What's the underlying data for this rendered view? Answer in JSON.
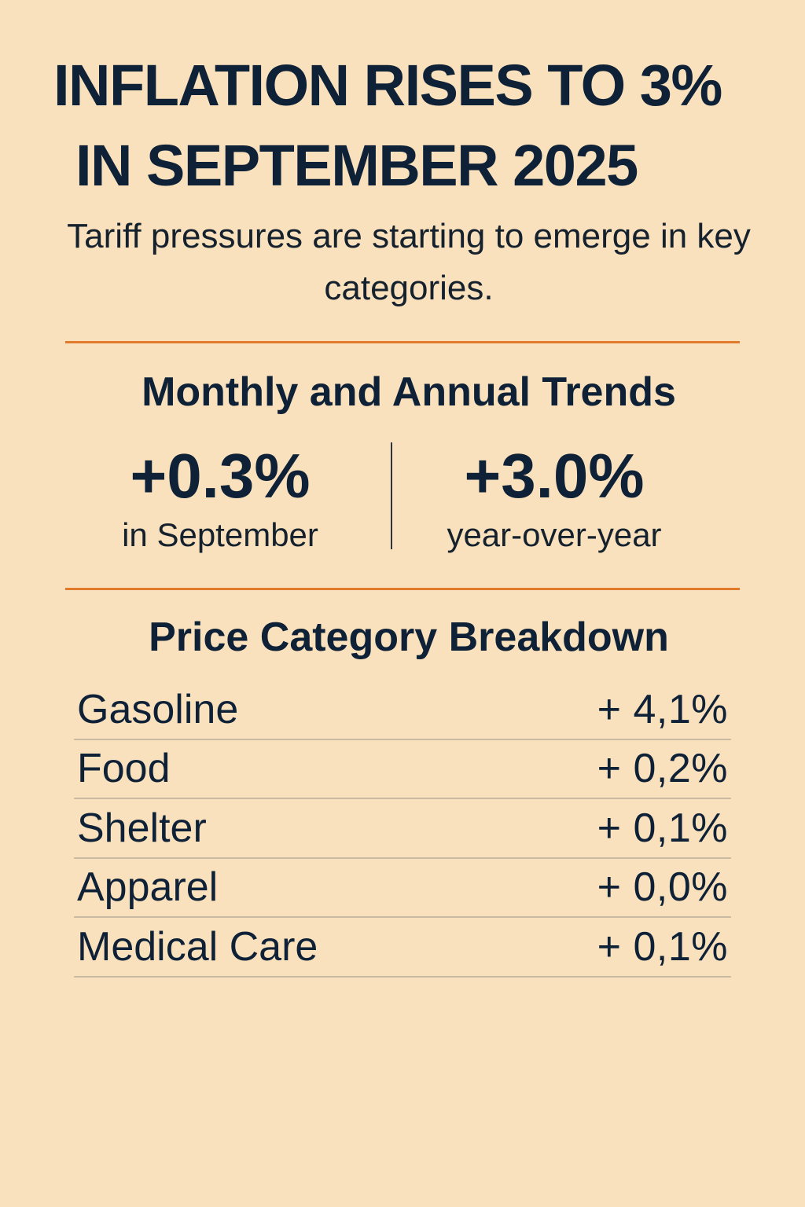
{
  "headline": {
    "line1": "INFLATION RISES TO 3%",
    "line2": "IN SEPTEMBER 2025"
  },
  "subtitle": "Tariff pressures are starting to emerge in key categories.",
  "trends": {
    "title": "Monthly and Annual Trends",
    "monthly": {
      "value": "+0.3%",
      "label": "in September"
    },
    "annual": {
      "value": "+3.0%",
      "label": "year-over-year"
    }
  },
  "breakdown": {
    "title": "Price Category Breakdown",
    "rows": [
      {
        "category": "Gasoline",
        "change": "+ 4,1%"
      },
      {
        "category": "Food",
        "change": "+ 0,2%"
      },
      {
        "category": "Shelter",
        "change": "+ 0,1%"
      },
      {
        "category": "Apparel",
        "change": "+ 0,0%"
      },
      {
        "category": "Medical Care",
        "change": "+ 0,1%"
      }
    ]
  },
  "colors": {
    "background": "#f9e1bd",
    "text": "#0f2137",
    "accent_rule": "#e27a2c",
    "row_divider": "#c9bba1"
  }
}
